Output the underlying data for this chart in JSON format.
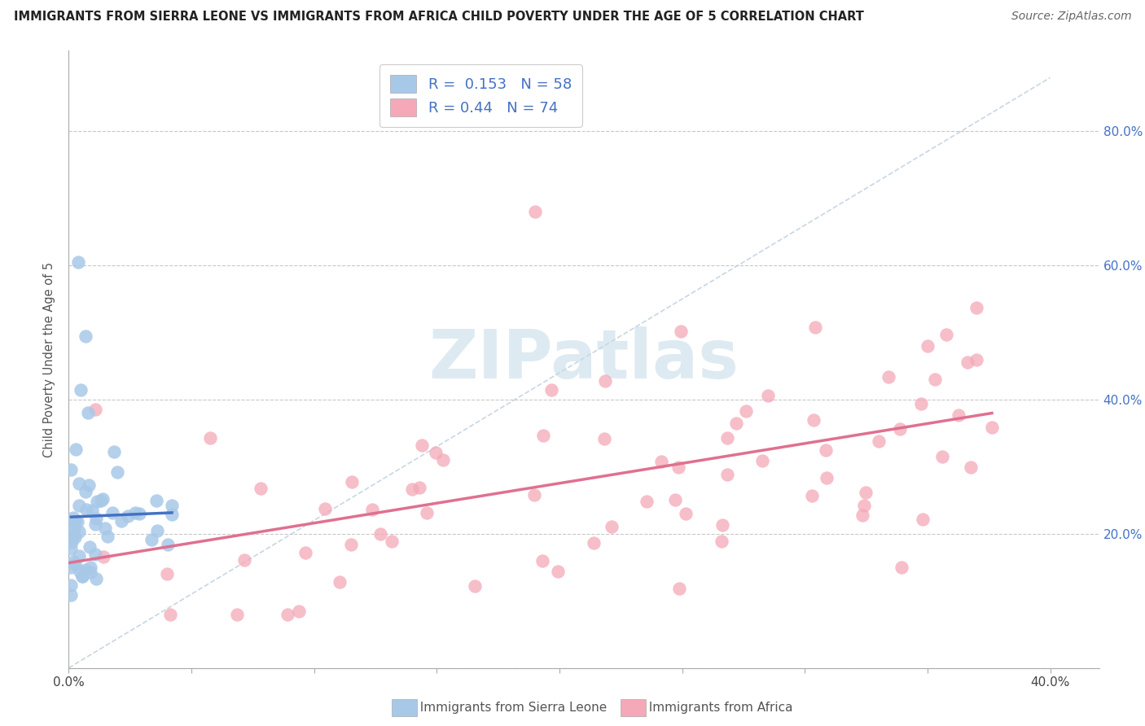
{
  "title": "IMMIGRANTS FROM SIERRA LEONE VS IMMIGRANTS FROM AFRICA CHILD POVERTY UNDER THE AGE OF 5 CORRELATION CHART",
  "source": "Source: ZipAtlas.com",
  "ylabel": "Child Poverty Under the Age of 5",
  "xlim": [
    0.0,
    0.42
  ],
  "ylim": [
    0.0,
    0.92
  ],
  "xtick_positions": [
    0.0,
    0.05,
    0.1,
    0.15,
    0.2,
    0.25,
    0.3,
    0.35,
    0.4
  ],
  "xtick_labels": [
    "0.0%",
    "",
    "",
    "",
    "",
    "",
    "",
    "",
    "40.0%"
  ],
  "ytick_positions": [
    0.0,
    0.2,
    0.4,
    0.6,
    0.8
  ],
  "ytick_labels_right": [
    "",
    "20.0%",
    "40.0%",
    "60.0%",
    "80.0%"
  ],
  "sierra_leone_R": 0.153,
  "sierra_leone_N": 58,
  "africa_R": 0.44,
  "africa_N": 74,
  "sierra_leone_color": "#a8c8e8",
  "africa_color": "#f4a8b8",
  "sierra_leone_line_color": "#4472c4",
  "africa_line_color": "#e07090",
  "background_color": "#ffffff",
  "grid_color": "#c8c8c8",
  "watermark_text": "ZIPatlas",
  "watermark_color": "#c8dce8",
  "legend_text_color": "#4472c4",
  "bottom_legend_text_color": "#555555",
  "title_color": "#222222",
  "ylabel_color": "#555555",
  "right_tick_color": "#4472c4"
}
